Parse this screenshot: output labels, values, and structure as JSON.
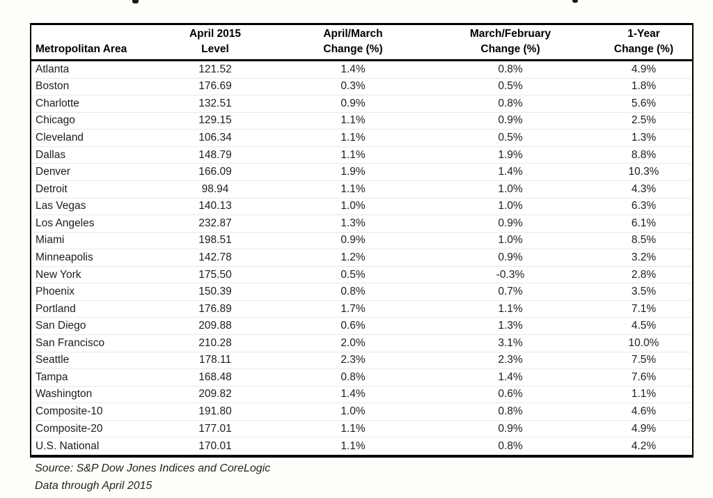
{
  "page": {
    "colors": {
      "page_bg": "#fffefb",
      "table_bg": "#ffffff",
      "text": "#1c1c1c",
      "border": "#000000",
      "row_divider": "#e8e8e8"
    }
  },
  "chart_data": {
    "type": "table",
    "columns": [
      "Metropolitan Area",
      "April 2015 Level",
      "April/March Change (%)",
      "March/February Change (%)",
      "1-Year Change (%)"
    ],
    "column_headers": {
      "line1": [
        "",
        "April 2015",
        "April/March",
        "March/February",
        "1-Year"
      ],
      "line2": [
        "Metropolitan Area",
        "Level",
        "Change (%)",
        "Change (%)",
        "Change (%)"
      ]
    },
    "rows": [
      [
        "Atlanta",
        "121.52",
        "1.4%",
        "0.8%",
        "4.9%"
      ],
      [
        "Boston",
        "176.69",
        "0.3%",
        "0.5%",
        "1.8%"
      ],
      [
        "Charlotte",
        "132.51",
        "0.9%",
        "0.8%",
        "5.6%"
      ],
      [
        "Chicago",
        "129.15",
        "1.1%",
        "0.9%",
        "2.5%"
      ],
      [
        "Cleveland",
        "106.34",
        "1.1%",
        "0.5%",
        "1.3%"
      ],
      [
        "Dallas",
        "148.79",
        "1.1%",
        "1.9%",
        "8.8%"
      ],
      [
        "Denver",
        "166.09",
        "1.9%",
        "1.4%",
        "10.3%"
      ],
      [
        "Detroit",
        "98.94",
        "1.1%",
        "1.0%",
        "4.3%"
      ],
      [
        "Las Vegas",
        "140.13",
        "1.0%",
        "1.0%",
        "6.3%"
      ],
      [
        "Los Angeles",
        "232.87",
        "1.3%",
        "0.9%",
        "6.1%"
      ],
      [
        "Miami",
        "198.51",
        "0.9%",
        "1.0%",
        "8.5%"
      ],
      [
        "Minneapolis",
        "142.78",
        "1.2%",
        "0.9%",
        "3.2%"
      ],
      [
        "New York",
        "175.50",
        "0.5%",
        "-0.3%",
        "2.8%"
      ],
      [
        "Phoenix",
        "150.39",
        "0.8%",
        "0.7%",
        "3.5%"
      ],
      [
        "Portland",
        "176.89",
        "1.7%",
        "1.1%",
        "7.1%"
      ],
      [
        "San Diego",
        "209.88",
        "0.6%",
        "1.3%",
        "4.5%"
      ],
      [
        "San Francisco",
        "210.28",
        "2.0%",
        "3.1%",
        "10.0%"
      ],
      [
        "Seattle",
        "178.11",
        "2.3%",
        "2.3%",
        "7.5%"
      ],
      [
        "Tampa",
        "168.48",
        "0.8%",
        "1.4%",
        "7.6%"
      ],
      [
        "Washington",
        "209.82",
        "1.4%",
        "0.6%",
        "1.1%"
      ],
      [
        "Composite-10",
        "191.80",
        "1.0%",
        "0.8%",
        "4.6%"
      ],
      [
        "Composite-20",
        "177.01",
        "1.1%",
        "0.9%",
        "4.9%"
      ],
      [
        "U.S. National",
        "170.01",
        "1.1%",
        "0.8%",
        "4.2%"
      ]
    ]
  },
  "footnotes": {
    "source": "Source: S&P Dow Jones Indices and CoreLogic",
    "data_through": "Data through April 2015"
  }
}
